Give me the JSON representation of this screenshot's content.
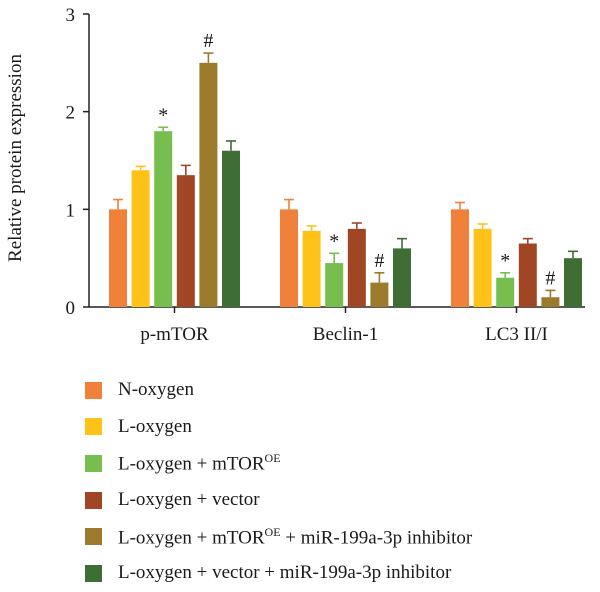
{
  "chart_data": {
    "type": "bar",
    "ylabel": "Relative protein expression",
    "xlabel": "",
    "ylim": [
      0,
      3
    ],
    "yticks": [
      "0",
      "1",
      "2",
      "3"
    ],
    "categories": [
      "p-mTOR",
      "Beclin-1",
      "LC3 II/I"
    ],
    "series": [
      {
        "name": "N-oxygen",
        "color": "#F0813A",
        "values": [
          1.0,
          1.0,
          1.0
        ],
        "errors": [
          0.1,
          0.1,
          0.07
        ],
        "marks": [
          "",
          "",
          ""
        ]
      },
      {
        "name": "L-oxygen",
        "color": "#FFC218",
        "values": [
          1.4,
          0.78,
          0.8
        ],
        "errors": [
          0.04,
          0.05,
          0.05
        ],
        "marks": [
          "",
          "",
          ""
        ]
      },
      {
        "name": "L-oxygen + mTOR",
        "name_sup": "OE",
        "color": "#78BE4E",
        "values": [
          1.8,
          0.45,
          0.3
        ],
        "errors": [
          0.04,
          0.1,
          0.05
        ],
        "marks": [
          "*",
          "*",
          "*"
        ]
      },
      {
        "name": "L-oxygen + vector",
        "color": "#A04625",
        "values": [
          1.35,
          0.8,
          0.65
        ],
        "errors": [
          0.1,
          0.06,
          0.05
        ],
        "marks": [
          "",
          "",
          ""
        ]
      },
      {
        "name": "L-oxygen + mTOR",
        "name_sup": "OE",
        "name_suffix": " + miR-199a-3p inhibitor",
        "color": "#9C7A2C",
        "values": [
          2.5,
          0.25,
          0.1
        ],
        "errors": [
          0.1,
          0.1,
          0.07
        ],
        "marks": [
          "#",
          "#",
          "#"
        ]
      },
      {
        "name": "L-oxygen + vector + miR-199a-3p inhibitor",
        "color": "#3F6E35",
        "values": [
          1.6,
          0.6,
          0.5
        ],
        "errors": [
          0.1,
          0.1,
          0.07
        ],
        "marks": [
          "",
          "",
          ""
        ]
      }
    ],
    "grid": false,
    "legend_position": "bottom"
  }
}
